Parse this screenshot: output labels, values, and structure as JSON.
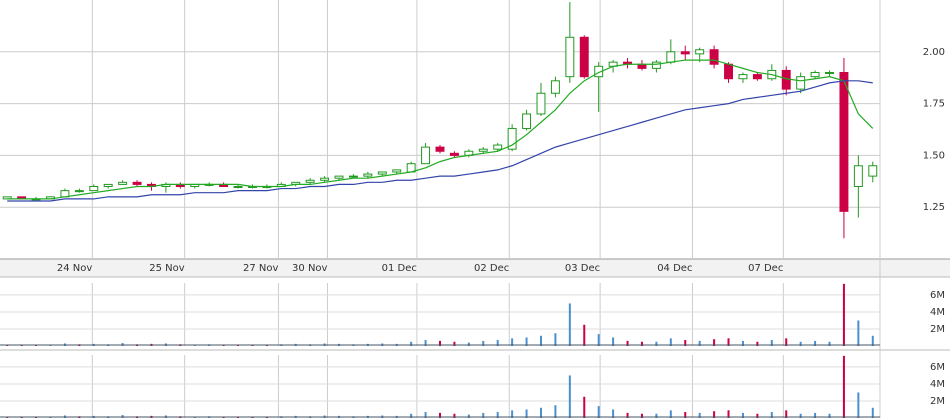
{
  "chart_data": [
    {
      "type": "candlestick",
      "x": [
        0.5,
        1.5,
        2.5,
        3.5,
        4.5,
        5.5,
        6.5,
        7.5,
        8.5,
        9.5,
        10.5,
        11.5,
        12.5,
        13.5,
        14.5,
        15.5,
        16.5,
        17.5,
        18.5,
        19.5,
        20.5,
        21.5,
        22.5,
        23.5,
        24.5,
        25.5,
        26.5,
        27.5,
        28.5,
        29.5,
        30.5,
        31.5,
        32.5,
        33.5,
        34.5,
        35.5,
        36.5,
        37.5,
        38.5,
        39.5,
        40.5,
        41.5,
        42.5,
        43.5,
        44.5,
        45.5,
        46.5,
        47.5,
        48.5,
        49.5,
        50.5,
        51.5,
        52.5,
        53.5,
        54.5,
        55.5,
        56.5,
        57.5,
        58.5,
        59.5,
        60.5
      ],
      "open": [
        1.29,
        1.3,
        1.29,
        1.29,
        1.3,
        1.33,
        1.33,
        1.35,
        1.36,
        1.37,
        1.36,
        1.35,
        1.36,
        1.35,
        1.36,
        1.36,
        1.35,
        1.35,
        1.35,
        1.35,
        1.36,
        1.37,
        1.38,
        1.39,
        1.4,
        1.4,
        1.41,
        1.42,
        1.42,
        1.46,
        1.54,
        1.51,
        1.5,
        1.52,
        1.53,
        1.53,
        1.63,
        1.7,
        1.8,
        1.88,
        2.07,
        1.88,
        1.93,
        1.95,
        1.94,
        1.92,
        1.95,
        2.0,
        1.99,
        2.01,
        1.94,
        1.87,
        1.89,
        1.87,
        1.91,
        1.82,
        1.88,
        1.9,
        1.9,
        1.35,
        1.4
      ],
      "high": [
        1.3,
        1.3,
        1.3,
        1.3,
        1.34,
        1.34,
        1.36,
        1.36,
        1.38,
        1.38,
        1.37,
        1.37,
        1.37,
        1.36,
        1.37,
        1.37,
        1.36,
        1.36,
        1.36,
        1.37,
        1.37,
        1.39,
        1.4,
        1.4,
        1.41,
        1.42,
        1.42,
        1.43,
        1.47,
        1.56,
        1.55,
        1.52,
        1.53,
        1.54,
        1.56,
        1.65,
        1.72,
        1.85,
        1.88,
        2.24,
        2.08,
        1.95,
        1.96,
        1.97,
        1.96,
        1.96,
        2.06,
        2.03,
        2.02,
        2.03,
        1.95,
        1.9,
        1.9,
        1.94,
        1.93,
        1.9,
        1.91,
        1.91,
        1.97,
        1.5,
        1.47
      ],
      "low": [
        1.29,
        1.29,
        1.29,
        1.29,
        1.3,
        1.32,
        1.33,
        1.34,
        1.36,
        1.35,
        1.33,
        1.32,
        1.34,
        1.34,
        1.35,
        1.35,
        1.34,
        1.34,
        1.34,
        1.35,
        1.35,
        1.36,
        1.37,
        1.38,
        1.39,
        1.39,
        1.4,
        1.41,
        1.42,
        1.46,
        1.51,
        1.49,
        1.49,
        1.51,
        1.52,
        1.52,
        1.62,
        1.69,
        1.78,
        1.85,
        1.87,
        1.71,
        1.9,
        1.92,
        1.91,
        1.9,
        1.94,
        1.96,
        1.95,
        1.92,
        1.85,
        1.85,
        1.86,
        1.86,
        1.79,
        1.8,
        1.87,
        1.88,
        1.1,
        1.2,
        1.37
      ],
      "close": [
        1.3,
        1.29,
        1.29,
        1.3,
        1.33,
        1.33,
        1.35,
        1.36,
        1.37,
        1.36,
        1.35,
        1.36,
        1.35,
        1.36,
        1.36,
        1.35,
        1.35,
        1.35,
        1.35,
        1.36,
        1.37,
        1.38,
        1.39,
        1.4,
        1.4,
        1.41,
        1.42,
        1.43,
        1.46,
        1.54,
        1.52,
        1.5,
        1.52,
        1.53,
        1.55,
        1.63,
        1.7,
        1.8,
        1.86,
        2.07,
        1.88,
        1.93,
        1.95,
        1.94,
        1.92,
        1.95,
        2.0,
        1.99,
        2.01,
        1.94,
        1.87,
        1.89,
        1.87,
        1.91,
        1.82,
        1.88,
        1.9,
        1.9,
        1.23,
        1.45,
        1.45
      ],
      "up_color": "#229922",
      "down_color": "#cc0044",
      "lines": [
        {
          "color": "#22aa22",
          "values": [
            1.29,
            1.29,
            1.29,
            1.29,
            1.3,
            1.31,
            1.32,
            1.33,
            1.34,
            1.35,
            1.35,
            1.36,
            1.36,
            1.36,
            1.36,
            1.36,
            1.36,
            1.35,
            1.35,
            1.35,
            1.36,
            1.36,
            1.37,
            1.38,
            1.39,
            1.39,
            1.4,
            1.41,
            1.42,
            1.44,
            1.47,
            1.49,
            1.5,
            1.51,
            1.52,
            1.55,
            1.6,
            1.66,
            1.72,
            1.8,
            1.86,
            1.9,
            1.93,
            1.94,
            1.94,
            1.94,
            1.95,
            1.96,
            1.96,
            1.96,
            1.94,
            1.92,
            1.9,
            1.89,
            1.87,
            1.86,
            1.87,
            1.88,
            1.86,
            1.7,
            1.63
          ]
        },
        {
          "color": "#3344aa",
          "values": [
            1.28,
            1.28,
            1.28,
            1.28,
            1.29,
            1.29,
            1.29,
            1.3,
            1.3,
            1.3,
            1.31,
            1.31,
            1.31,
            1.32,
            1.32,
            1.32,
            1.33,
            1.33,
            1.33,
            1.34,
            1.34,
            1.35,
            1.35,
            1.36,
            1.36,
            1.37,
            1.37,
            1.38,
            1.38,
            1.39,
            1.4,
            1.4,
            1.41,
            1.42,
            1.43,
            1.45,
            1.48,
            1.51,
            1.54,
            1.56,
            1.58,
            1.6,
            1.62,
            1.64,
            1.66,
            1.68,
            1.7,
            1.72,
            1.73,
            1.74,
            1.75,
            1.77,
            1.78,
            1.79,
            1.8,
            1.81,
            1.83,
            1.85,
            1.86,
            1.86,
            1.85
          ]
        }
      ],
      "xlim": [
        0,
        61
      ],
      "ylim": [
        1.0,
        2.25
      ],
      "yticks": [
        {
          "value": 1.25,
          "label": "1.25"
        },
        {
          "value": 1.5,
          "label": "1.50"
        },
        {
          "value": 1.75,
          "label": "1.75"
        },
        {
          "value": 2.0,
          "label": "2.00"
        }
      ],
      "xticks": [
        {
          "value": 6.4,
          "label": "24 Nov"
        },
        {
          "value": 12.8,
          "label": "25 Nov"
        },
        {
          "value": 19.3,
          "label": "27 Nov"
        },
        {
          "value": 22.7,
          "label": "30 Nov"
        },
        {
          "value": 28.9,
          "label": "01 Dec"
        },
        {
          "value": 35.3,
          "label": "02 Dec"
        },
        {
          "value": 41.6,
          "label": "03 Dec"
        },
        {
          "value": 48.0,
          "label": "04 Dec"
        },
        {
          "value": 54.3,
          "label": "07 Dec"
        }
      ],
      "grid": true
    },
    {
      "type": "bar",
      "x": [
        0.5,
        1.5,
        2.5,
        3.5,
        4.5,
        5.5,
        6.5,
        7.5,
        8.5,
        9.5,
        10.5,
        11.5,
        12.5,
        13.5,
        14.5,
        15.5,
        16.5,
        17.5,
        18.5,
        19.5,
        20.5,
        21.5,
        22.5,
        23.5,
        24.5,
        25.5,
        26.5,
        27.5,
        28.5,
        29.5,
        30.5,
        31.5,
        32.5,
        33.5,
        34.5,
        35.5,
        36.5,
        37.5,
        38.5,
        39.5,
        40.5,
        41.5,
        42.5,
        43.5,
        44.5,
        45.5,
        46.5,
        47.5,
        48.5,
        49.5,
        50.5,
        51.5,
        52.5,
        53.5,
        54.5,
        55.5,
        56.5,
        57.5,
        58.5,
        59.5,
        60.5
      ],
      "values": [
        100000,
        80000,
        60000,
        90000,
        300000,
        200000,
        250000,
        200000,
        350000,
        200000,
        250000,
        300000,
        200000,
        150000,
        200000,
        150000,
        150000,
        150000,
        100000,
        200000,
        250000,
        200000,
        300000,
        250000,
        200000,
        250000,
        300000,
        250000,
        500000,
        700000,
        600000,
        500000,
        400000,
        600000,
        700000,
        900000,
        1000000,
        1200000,
        1500000,
        5000000,
        2500000,
        1400000,
        1000000,
        600000,
        500000,
        500000,
        900000,
        700000,
        600000,
        800000,
        900000,
        600000,
        500000,
        700000,
        900000,
        500000,
        600000,
        500000,
        7300000,
        3000000,
        1200000
      ],
      "colors": [
        "#cc0044",
        "#cc0044",
        "#cc0044",
        "#4a90d0",
        "#4a90d0",
        "#cc0044",
        "#4a90d0",
        "#4a90d0",
        "#4a90d0",
        "#cc0044",
        "#cc0044",
        "#4a90d0",
        "#cc0044",
        "#4a90d0",
        "#4a90d0",
        "#cc0044",
        "#cc0044",
        "#cc0044",
        "#cc0044",
        "#4a90d0",
        "#4a90d0",
        "#4a90d0",
        "#4a90d0",
        "#4a90d0",
        "#4a90d0",
        "#4a90d0",
        "#4a90d0",
        "#4a90d0",
        "#4a90d0",
        "#4a90d0",
        "#cc0044",
        "#cc0044",
        "#4a90d0",
        "#4a90d0",
        "#4a90d0",
        "#4a90d0",
        "#4a90d0",
        "#4a90d0",
        "#4a90d0",
        "#4a90d0",
        "#cc0044",
        "#4a90d0",
        "#4a90d0",
        "#cc0044",
        "#cc0044",
        "#4a90d0",
        "#4a90d0",
        "#cc0044",
        "#4a90d0",
        "#cc0044",
        "#cc0044",
        "#4a90d0",
        "#cc0044",
        "#4a90d0",
        "#cc0044",
        "#4a90d0",
        "#4a90d0",
        "#4a90d0",
        "#cc0044",
        "#4a90d0",
        "#4a90d0"
      ],
      "xlim": [
        0,
        61
      ],
      "ylim": [
        0,
        7400000
      ],
      "yticks": [
        {
          "value": 2000000,
          "label": "2M"
        },
        {
          "value": 4000000,
          "label": "4M"
        },
        {
          "value": 6000000,
          "label": "6M"
        }
      ]
    },
    {
      "type": "bar",
      "x": [
        0.5,
        1.5,
        2.5,
        3.5,
        4.5,
        5.5,
        6.5,
        7.5,
        8.5,
        9.5,
        10.5,
        11.5,
        12.5,
        13.5,
        14.5,
        15.5,
        16.5,
        17.5,
        18.5,
        19.5,
        20.5,
        21.5,
        22.5,
        23.5,
        24.5,
        25.5,
        26.5,
        27.5,
        28.5,
        29.5,
        30.5,
        31.5,
        32.5,
        33.5,
        34.5,
        35.5,
        36.5,
        37.5,
        38.5,
        39.5,
        40.5,
        41.5,
        42.5,
        43.5,
        44.5,
        45.5,
        46.5,
        47.5,
        48.5,
        49.5,
        50.5,
        51.5,
        52.5,
        53.5,
        54.5,
        55.5,
        56.5,
        57.5,
        58.5,
        59.5,
        60.5
      ],
      "values": [
        100000,
        80000,
        60000,
        90000,
        300000,
        200000,
        250000,
        200000,
        350000,
        200000,
        250000,
        300000,
        200000,
        150000,
        200000,
        150000,
        150000,
        150000,
        100000,
        200000,
        250000,
        200000,
        300000,
        250000,
        200000,
        250000,
        300000,
        250000,
        500000,
        700000,
        600000,
        500000,
        400000,
        600000,
        700000,
        900000,
        1000000,
        1200000,
        1500000,
        5000000,
        2500000,
        1400000,
        1000000,
        600000,
        500000,
        500000,
        900000,
        700000,
        600000,
        800000,
        900000,
        600000,
        500000,
        700000,
        900000,
        500000,
        600000,
        500000,
        7300000,
        3000000,
        1200000
      ],
      "colors": [
        "#cc0044",
        "#cc0044",
        "#cc0044",
        "#4a90d0",
        "#4a90d0",
        "#cc0044",
        "#4a90d0",
        "#4a90d0",
        "#4a90d0",
        "#cc0044",
        "#cc0044",
        "#4a90d0",
        "#cc0044",
        "#4a90d0",
        "#4a90d0",
        "#cc0044",
        "#cc0044",
        "#cc0044",
        "#cc0044",
        "#4a90d0",
        "#4a90d0",
        "#4a90d0",
        "#4a90d0",
        "#4a90d0",
        "#4a90d0",
        "#4a90d0",
        "#4a90d0",
        "#4a90d0",
        "#4a90d0",
        "#4a90d0",
        "#cc0044",
        "#cc0044",
        "#4a90d0",
        "#4a90d0",
        "#4a90d0",
        "#4a90d0",
        "#4a90d0",
        "#4a90d0",
        "#4a90d0",
        "#4a90d0",
        "#cc0044",
        "#4a90d0",
        "#4a90d0",
        "#cc0044",
        "#cc0044",
        "#4a90d0",
        "#4a90d0",
        "#cc0044",
        "#4a90d0",
        "#cc0044",
        "#cc0044",
        "#4a90d0",
        "#cc0044",
        "#4a90d0",
        "#cc0044",
        "#4a90d0",
        "#4a90d0",
        "#4a90d0",
        "#cc0044",
        "#4a90d0",
        "#4a90d0"
      ],
      "xlim": [
        0,
        61
      ],
      "ylim": [
        0,
        7400000
      ],
      "yticks": [
        {
          "value": 2000000,
          "label": "2M"
        },
        {
          "value": 4000000,
          "label": "4M"
        },
        {
          "value": 6000000,
          "label": "6M"
        }
      ]
    }
  ]
}
